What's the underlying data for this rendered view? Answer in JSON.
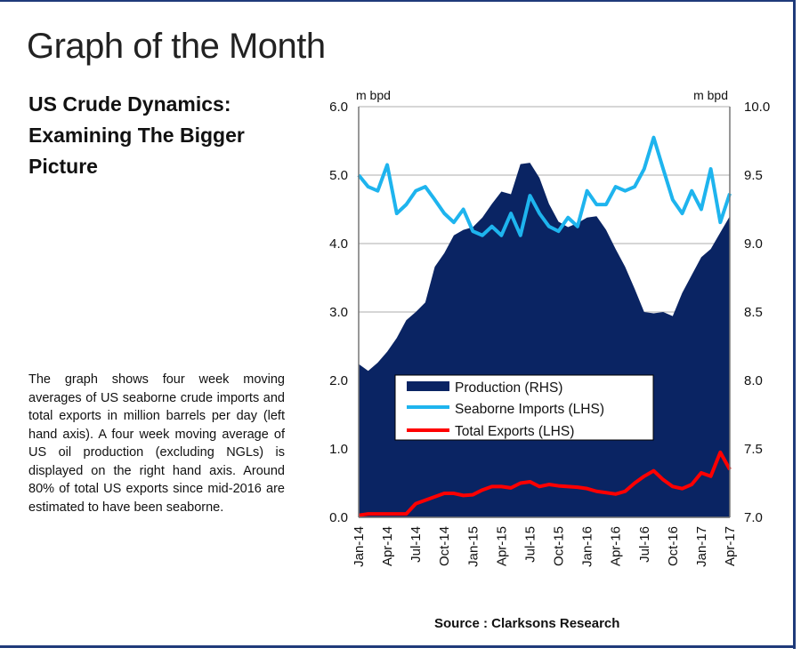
{
  "header": {
    "title": "Graph of the Month"
  },
  "article": {
    "headline": "US Crude Dynamics: Examining The Bigger Picture",
    "description": "The graph shows four week moving averages of US seaborne crude imports and total exports in million barrels per day (left hand axis). A four week moving average of US oil production (excluding NGLs) is displayed on the right hand axis. Around 80% of total US exports since mid-2016 are estimated to have been seaborne.",
    "source": "Source : Clarksons Research"
  },
  "colors": {
    "production": "#0a2463",
    "imports": "#1eb4ee",
    "exports": "#ff0000",
    "rule": "#1f3a7a"
  },
  "chart_data": {
    "type": "line",
    "left_axis": {
      "unit": "m bpd",
      "ylim": [
        0,
        6
      ],
      "ticks": [
        "0.0",
        "1.0",
        "2.0",
        "3.0",
        "4.0",
        "5.0",
        "6.0"
      ]
    },
    "right_axis": {
      "unit": "m bpd",
      "ylim": [
        7,
        10
      ],
      "ticks": [
        "7.0",
        "7.5",
        "8.0",
        "8.5",
        "9.0",
        "9.5",
        "10.0"
      ]
    },
    "x_tick_labels": [
      "Jan-14",
      "Apr-14",
      "Jul-14",
      "Oct-14",
      "Jan-15",
      "Apr-15",
      "Jul-15",
      "Oct-15",
      "Jan-16",
      "Apr-16",
      "Jul-16",
      "Oct-16",
      "Jan-17",
      "Apr-17"
    ],
    "x": [
      "Jan-14",
      "Feb-14",
      "Mar-14",
      "Apr-14",
      "May-14",
      "Jun-14",
      "Jul-14",
      "Aug-14",
      "Sep-14",
      "Oct-14",
      "Nov-14",
      "Dec-14",
      "Jan-15",
      "Feb-15",
      "Mar-15",
      "Apr-15",
      "May-15",
      "Jun-15",
      "Jul-15",
      "Aug-15",
      "Sep-15",
      "Oct-15",
      "Nov-15",
      "Dec-15",
      "Jan-16",
      "Feb-16",
      "Mar-16",
      "Apr-16",
      "May-16",
      "Jun-16",
      "Jul-16",
      "Aug-16",
      "Sep-16",
      "Oct-16",
      "Nov-16",
      "Dec-16",
      "Jan-17",
      "Feb-17",
      "Mar-17",
      "Apr-17"
    ],
    "grid": "horizontal",
    "legend_placement": "center-left",
    "series": [
      {
        "name": "Production (RHS)",
        "type": "area",
        "axis": "right",
        "values": [
          8.12,
          8.07,
          8.13,
          8.21,
          8.31,
          8.44,
          8.5,
          8.57,
          8.83,
          8.93,
          9.06,
          9.1,
          9.12,
          9.19,
          9.29,
          9.38,
          9.36,
          9.58,
          9.59,
          9.48,
          9.29,
          9.16,
          9.12,
          9.15,
          9.19,
          9.2,
          9.1,
          8.96,
          8.83,
          8.67,
          8.5,
          8.49,
          8.5,
          8.47,
          8.64,
          8.77,
          8.9,
          8.96,
          9.08,
          9.2
        ]
      },
      {
        "name": "Seaborne Imports (LHS)",
        "type": "line",
        "axis": "left",
        "values": [
          5.0,
          4.83,
          4.77,
          5.15,
          4.44,
          4.57,
          4.77,
          4.83,
          4.64,
          4.44,
          4.31,
          4.5,
          4.18,
          4.12,
          4.25,
          4.12,
          4.44,
          4.12,
          4.7,
          4.44,
          4.25,
          4.18,
          4.38,
          4.25,
          4.77,
          4.57,
          4.57,
          4.83,
          4.77,
          4.83,
          5.09,
          5.55,
          5.09,
          4.64,
          4.44,
          4.77,
          4.5,
          5.09,
          4.31,
          4.73
        ]
      },
      {
        "name": "Total Exports (LHS)",
        "type": "line",
        "axis": "left",
        "values": [
          0.03,
          0.05,
          0.05,
          0.05,
          0.05,
          0.05,
          0.2,
          0.25,
          0.3,
          0.35,
          0.35,
          0.32,
          0.33,
          0.4,
          0.45,
          0.45,
          0.43,
          0.5,
          0.52,
          0.45,
          0.48,
          0.46,
          0.45,
          0.44,
          0.42,
          0.38,
          0.36,
          0.34,
          0.38,
          0.5,
          0.6,
          0.68,
          0.55,
          0.45,
          0.42,
          0.48,
          0.65,
          0.6,
          0.95,
          0.7
        ]
      }
    ]
  }
}
